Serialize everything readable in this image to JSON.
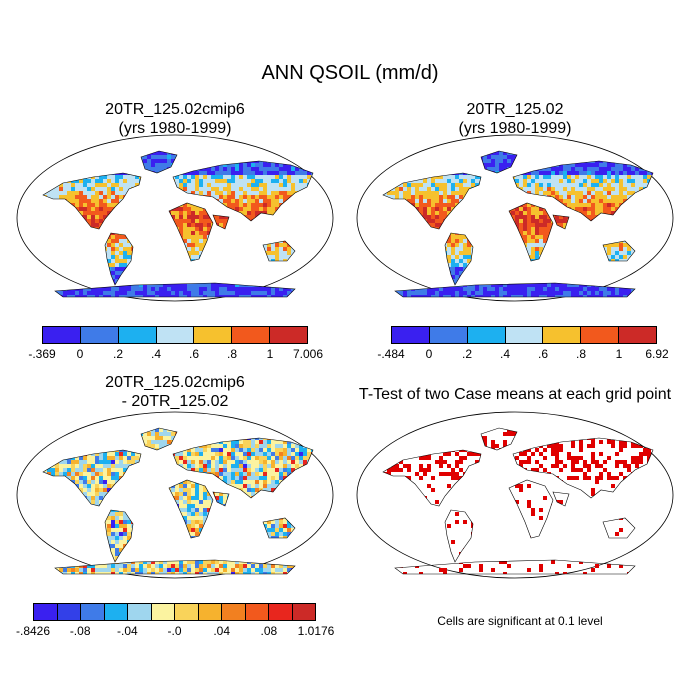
{
  "title": "ANN QSOIL (mm/d)",
  "panels": {
    "case1": {
      "title_line1": "20TR_125.02cmip6",
      "title_line2": "(yrs 1980-1999)",
      "colorbar": {
        "colors": [
          "#3a20f0",
          "#3f7be8",
          "#1db0f0",
          "#bfe2f4",
          "#f6c12e",
          "#f2591d",
          "#cc2a27"
        ],
        "ticks": [
          "-.369",
          "0",
          ".2",
          ".4",
          ".6",
          ".8",
          "1",
          "7.006"
        ]
      }
    },
    "case2": {
      "title_line1": "20TR_125.02",
      "title_line2": "(yrs 1980-1999)",
      "colorbar": {
        "colors": [
          "#3a20f0",
          "#3f7be8",
          "#1db0f0",
          "#bfe2f4",
          "#f6c12e",
          "#f2591d",
          "#cc2a27"
        ],
        "ticks": [
          "-.484",
          "0",
          ".2",
          ".4",
          ".6",
          ".8",
          "1",
          "6.92"
        ]
      }
    },
    "difference": {
      "title_line1": "20TR_125.02cmip6",
      "title_line2": "- 20TR_125.02",
      "colorbar": {
        "colors": [
          "#3a20f0",
          "#3340e8",
          "#3f7be8",
          "#1db0f0",
          "#9fd6ee",
          "#fbf3a0",
          "#f9d35a",
          "#f6b22e",
          "#f28020",
          "#f2591d",
          "#e8261e",
          "#cc2a27"
        ],
        "ticks": [
          "-.8426",
          "-.08",
          "-.04",
          "-.0",
          ".04",
          ".08",
          "1.0176"
        ]
      }
    },
    "ttest": {
      "title": "T-Test of two Case means at each grid point",
      "note": "Cells are significant at 0.1 level",
      "sig_color": "#e00000"
    }
  }
}
